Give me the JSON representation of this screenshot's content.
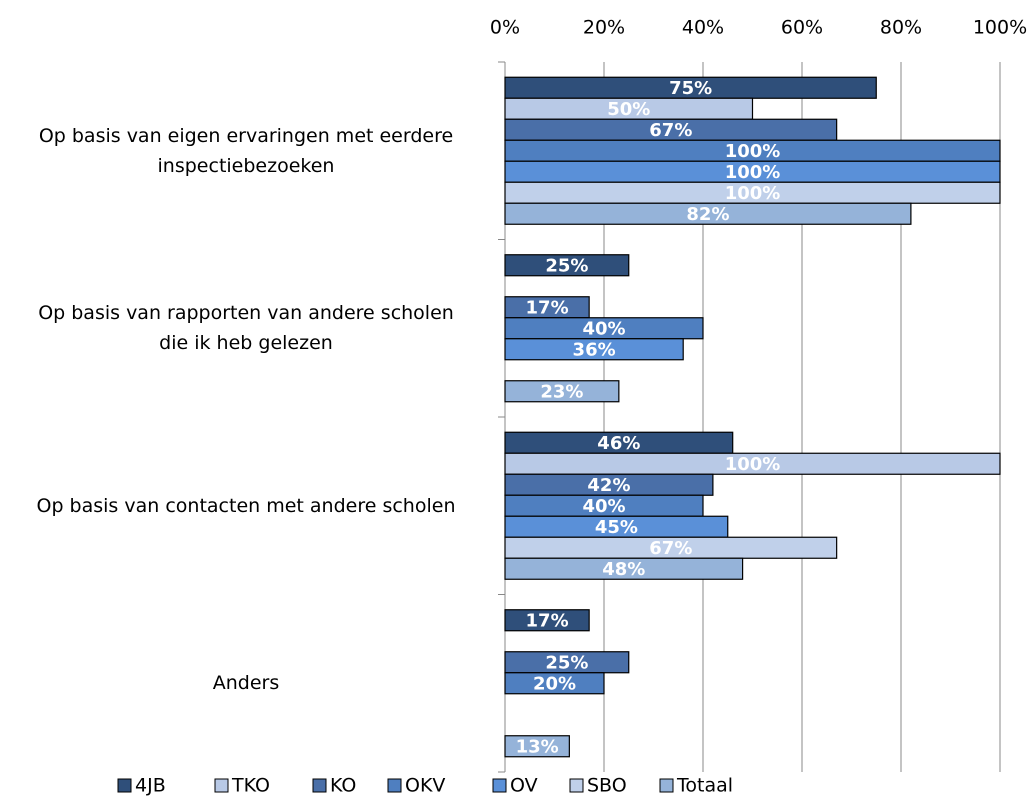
{
  "chart_data": {
    "type": "bar",
    "orientation": "horizontal",
    "categories": [
      "Op basis van eigen ervaringen met eerdere\ninspectiebezoeken",
      "Op basis van rapporten van andere scholen\ndie ik heb gelezen",
      "Op basis van contacten met andere scholen",
      "Anders"
    ],
    "series": [
      {
        "name": "4JB",
        "color": "#2f4f7a",
        "values": [
          75,
          25,
          46,
          17
        ],
        "value_labels": [
          "75%",
          "25%",
          "46%",
          "17%"
        ]
      },
      {
        "name": "TKO",
        "color": "#b8c9e6",
        "values": [
          50,
          null,
          100,
          null
        ],
        "value_labels": [
          "50%",
          null,
          "100%",
          null
        ]
      },
      {
        "name": "KO",
        "color": "#4a6fa8",
        "values": [
          67,
          17,
          42,
          25
        ],
        "value_labels": [
          "67%",
          "17%",
          "42%",
          "25%"
        ]
      },
      {
        "name": "OKV",
        "color": "#4f7fc0",
        "values": [
          100,
          40,
          40,
          20
        ],
        "value_labels": [
          "100%",
          "40%",
          "40%",
          "20%"
        ]
      },
      {
        "name": "OV",
        "color": "#5a90d8",
        "values": [
          100,
          36,
          45,
          null
        ],
        "value_labels": [
          "100%",
          "36%",
          "45%",
          null
        ]
      },
      {
        "name": "SBO",
        "color": "#c0d0ea",
        "values": [
          100,
          null,
          67,
          null
        ],
        "value_labels": [
          "100%",
          null,
          "67%",
          null
        ]
      },
      {
        "name": "Totaal",
        "color": "#95b3d9",
        "values": [
          82,
          23,
          48,
          13
        ],
        "value_labels": [
          "82%",
          "23%",
          "48%",
          "13%"
        ]
      }
    ],
    "xlim": [
      0,
      100
    ],
    "xticks": [
      {
        "value": 0,
        "label": "0%"
      },
      {
        "value": 20,
        "label": "20%"
      },
      {
        "value": 40,
        "label": "40%"
      },
      {
        "value": 60,
        "label": "60%"
      },
      {
        "value": 80,
        "label": "80%"
      },
      {
        "value": 100,
        "label": "100%"
      }
    ],
    "grid": true,
    "legend": "bottom"
  }
}
